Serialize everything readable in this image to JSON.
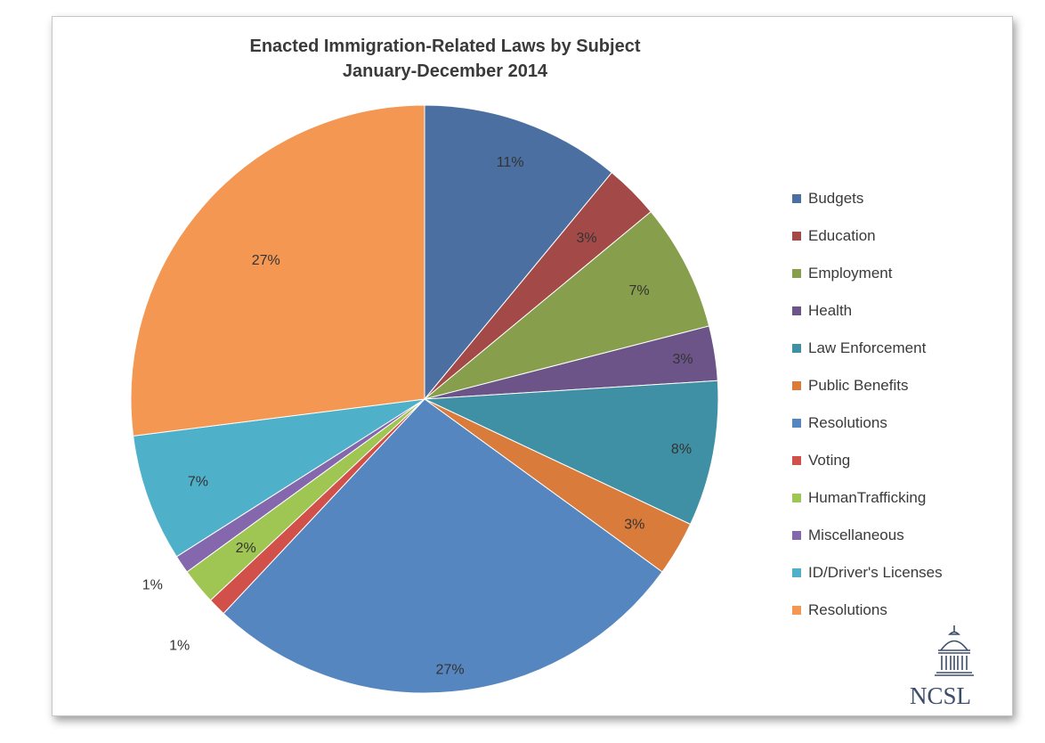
{
  "chart_data": {
    "type": "pie",
    "title": "Enacted Immigration-Related Laws by Subject",
    "subtitle": "January-December 2014",
    "legend_position": "right",
    "slices": [
      {
        "label": "Budgets",
        "value": 11,
        "display": "11%",
        "color": "#4a6fa0"
      },
      {
        "label": "Education",
        "value": 3,
        "display": "3%",
        "color": "#a34a48"
      },
      {
        "label": "Employment",
        "value": 7,
        "display": "7%",
        "color": "#879e4c"
      },
      {
        "label": "Health",
        "value": 3,
        "display": "3%",
        "color": "#6c5488"
      },
      {
        "label": "Law Enforcement",
        "value": 8,
        "display": "8%",
        "color": "#3f90a4"
      },
      {
        "label": "Public Benefits",
        "value": 3,
        "display": "3%",
        "color": "#d97b3a"
      },
      {
        "label": "Resolutions",
        "value": 27,
        "display": "27%",
        "color": "#5686bf"
      },
      {
        "label": "Voting",
        "value": 1,
        "display": "1%",
        "color": "#d1504a"
      },
      {
        "label": "HumanTrafficking",
        "value": 2,
        "display": "2%",
        "color": "#9fc552"
      },
      {
        "label": "Miscellaneous",
        "value": 1,
        "display": "1%",
        "color": "#8467ad"
      },
      {
        "label": "ID/Driver's Licenses",
        "value": 7,
        "display": "7%",
        "color": "#4fb0c9"
      },
      {
        "label": "Resolutions",
        "value": 27,
        "display": "27%",
        "color": "#f39753"
      }
    ]
  },
  "logo": {
    "text": "NCSL"
  }
}
